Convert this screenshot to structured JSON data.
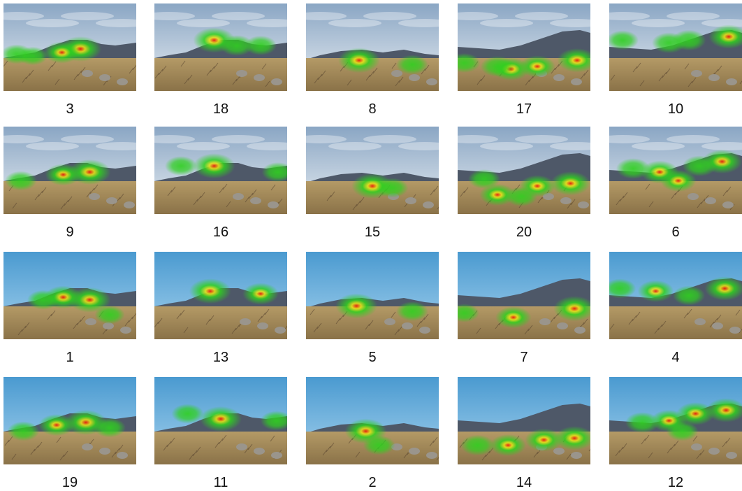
{
  "panels": [
    {
      "label": "3",
      "sky": "cloudy",
      "hills": "left",
      "heat": [
        [
          0.58,
          0.52,
          1.0
        ],
        [
          0.44,
          0.56,
          0.7
        ],
        [
          0.1,
          0.58,
          0.5
        ],
        [
          0.22,
          0.6,
          0.4
        ]
      ]
    },
    {
      "label": "18",
      "sky": "cloudy",
      "hills": "left",
      "heat": [
        [
          0.45,
          0.42,
          1.0
        ],
        [
          0.62,
          0.48,
          0.6
        ],
        [
          0.8,
          0.48,
          0.5
        ]
      ]
    },
    {
      "label": "8",
      "sky": "cloudy",
      "hills": "mid",
      "heat": [
        [
          0.4,
          0.65,
          1.0
        ],
        [
          0.8,
          0.7,
          0.5
        ]
      ]
    },
    {
      "label": "17",
      "sky": "cloudy",
      "hills": "right",
      "heat": [
        [
          0.9,
          0.65,
          0.9
        ],
        [
          0.6,
          0.72,
          0.7
        ],
        [
          0.4,
          0.75,
          0.8
        ],
        [
          0.3,
          0.72,
          0.6
        ],
        [
          0.05,
          0.68,
          0.5
        ]
      ]
    },
    {
      "label": "10",
      "sky": "cloudy",
      "hills": "right",
      "heat": [
        [
          0.9,
          0.38,
          0.9
        ],
        [
          0.6,
          0.42,
          0.6
        ],
        [
          0.45,
          0.45,
          0.6
        ],
        [
          0.1,
          0.42,
          0.5
        ]
      ]
    },
    {
      "label": "9",
      "sky": "cloudy",
      "hills": "left",
      "heat": [
        [
          0.65,
          0.52,
          1.0
        ],
        [
          0.45,
          0.55,
          0.7
        ],
        [
          0.13,
          0.62,
          0.5
        ]
      ]
    },
    {
      "label": "16",
      "sky": "cloudy",
      "hills": "left",
      "heat": [
        [
          0.45,
          0.45,
          1.0
        ],
        [
          0.2,
          0.45,
          0.5
        ],
        [
          0.93,
          0.52,
          0.5
        ]
      ]
    },
    {
      "label": "15",
      "sky": "cloudy",
      "hills": "mid",
      "heat": [
        [
          0.5,
          0.68,
          1.0
        ],
        [
          0.65,
          0.7,
          0.5
        ]
      ]
    },
    {
      "label": "20",
      "sky": "cloudy",
      "hills": "right",
      "heat": [
        [
          0.85,
          0.65,
          0.9
        ],
        [
          0.6,
          0.68,
          0.7
        ],
        [
          0.3,
          0.78,
          0.7
        ],
        [
          0.2,
          0.6,
          0.5
        ],
        [
          0.48,
          0.8,
          0.5
        ]
      ]
    },
    {
      "label": "6",
      "sky": "cloudy",
      "hills": "right",
      "heat": [
        [
          0.85,
          0.4,
          0.9
        ],
        [
          0.38,
          0.52,
          0.8
        ],
        [
          0.52,
          0.62,
          0.7
        ],
        [
          0.68,
          0.45,
          0.6
        ],
        [
          0.18,
          0.48,
          0.6
        ]
      ]
    },
    {
      "label": "1",
      "sky": "clear",
      "hills": "left",
      "heat": [
        [
          0.65,
          0.55,
          1.0
        ],
        [
          0.45,
          0.52,
          0.8
        ],
        [
          0.3,
          0.55,
          0.5
        ],
        [
          0.8,
          0.72,
          0.4
        ]
      ]
    },
    {
      "label": "13",
      "sky": "clear",
      "hills": "left",
      "heat": [
        [
          0.42,
          0.45,
          1.0
        ],
        [
          0.8,
          0.48,
          0.7
        ]
      ]
    },
    {
      "label": "5",
      "sky": "clear",
      "hills": "mid",
      "heat": [
        [
          0.38,
          0.62,
          1.0
        ],
        [
          0.8,
          0.68,
          0.5
        ]
      ]
    },
    {
      "label": "7",
      "sky": "clear",
      "hills": "right",
      "heat": [
        [
          0.88,
          0.65,
          1.0
        ],
        [
          0.42,
          0.75,
          0.7
        ],
        [
          0.05,
          0.7,
          0.4
        ]
      ]
    },
    {
      "label": "4",
      "sky": "clear",
      "hills": "right",
      "heat": [
        [
          0.87,
          0.42,
          0.9
        ],
        [
          0.35,
          0.45,
          0.7
        ],
        [
          0.08,
          0.42,
          0.5
        ],
        [
          0.6,
          0.5,
          0.5
        ]
      ]
    },
    {
      "label": "19",
      "sky": "clear",
      "hills": "left",
      "heat": [
        [
          0.62,
          0.52,
          1.0
        ],
        [
          0.4,
          0.55,
          0.7
        ],
        [
          0.15,
          0.62,
          0.5
        ],
        [
          0.8,
          0.58,
          0.5
        ]
      ]
    },
    {
      "label": "11",
      "sky": "clear",
      "hills": "left",
      "heat": [
        [
          0.5,
          0.48,
          1.0
        ],
        [
          0.25,
          0.42,
          0.5
        ],
        [
          0.92,
          0.5,
          0.5
        ]
      ]
    },
    {
      "label": "2",
      "sky": "clear",
      "hills": "mid",
      "heat": [
        [
          0.45,
          0.62,
          1.0
        ],
        [
          0.55,
          0.78,
          0.5
        ]
      ]
    },
    {
      "label": "14",
      "sky": "clear",
      "hills": "right",
      "heat": [
        [
          0.88,
          0.7,
          0.9
        ],
        [
          0.65,
          0.72,
          0.8
        ],
        [
          0.38,
          0.78,
          0.7
        ],
        [
          0.15,
          0.78,
          0.6
        ]
      ]
    },
    {
      "label": "12",
      "sky": "clear",
      "hills": "right",
      "heat": [
        [
          0.88,
          0.38,
          0.9
        ],
        [
          0.65,
          0.42,
          0.8
        ],
        [
          0.45,
          0.5,
          0.7
        ],
        [
          0.25,
          0.52,
          0.6
        ],
        [
          0.55,
          0.62,
          0.5
        ]
      ]
    }
  ],
  "colors": {
    "sky_cloudy_top": "#8aa6c4",
    "sky_cloudy_bottom": "#e9eef2",
    "sky_clear_top": "#4a9ad0",
    "sky_clear_bottom": "#a6d2ee",
    "hill": "#4e5868",
    "hill_shadow": "#353d48",
    "ground": "#8a7248",
    "ground_dark": "#5a4630",
    "grass": "#b49a66",
    "heat_green": "#2fd01f",
    "heat_yellow": "#e6e01a",
    "heat_red": "#e81c0c"
  }
}
